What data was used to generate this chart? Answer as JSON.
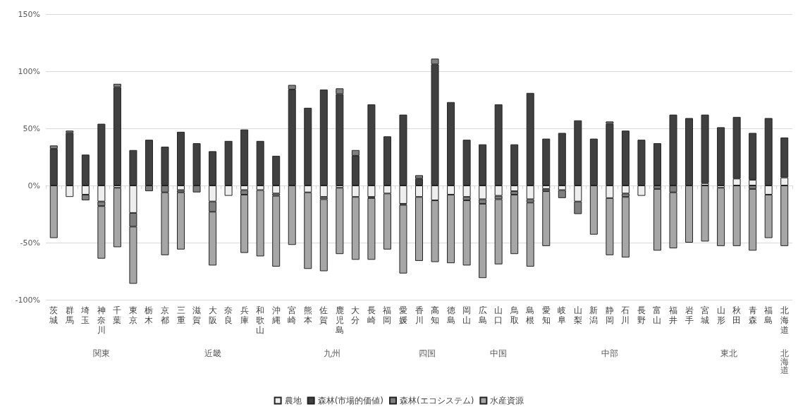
{
  "chart_data": {
    "type": "bar",
    "stacked": true,
    "categories": [
      "茨城",
      "群馬",
      "埼玉",
      "神奈川",
      "千葉",
      "東京",
      "栃木",
      "京都",
      "三重",
      "滋賀",
      "大阪",
      "奈良",
      "兵庫",
      "和歌山",
      "沖縄",
      "宮崎",
      "熊本",
      "佐賀",
      "鹿児島",
      "大分",
      "長崎",
      "福岡",
      "愛媛",
      "香川",
      "高知",
      "徳島",
      "岡山",
      "広島",
      "山口",
      "鳥取",
      "島根",
      "愛知",
      "岐阜",
      "山梨",
      "新潟",
      "静岡",
      "石川",
      "長野",
      "富山",
      "福井",
      "岩手",
      "宮城",
      "山形",
      "秋田",
      "青森",
      "福島",
      "北海道"
    ],
    "series": [
      {
        "name": "農地",
        "color": "#eeeeee",
        "values": [
          null,
          -10,
          -8,
          -14,
          -2,
          -24,
          null,
          null,
          -4,
          null,
          -14,
          -9,
          -4,
          -4,
          -7,
          null,
          -6,
          -10,
          -2,
          -10,
          -10,
          -7,
          -16,
          -10,
          -13,
          -8,
          -10,
          -12,
          -9,
          -5,
          -12,
          -3,
          -4,
          -14,
          null,
          -11,
          -7,
          -9,
          null,
          null,
          null,
          2,
          -2,
          6,
          5,
          -8,
          7
        ]
      },
      {
        "name": "森林(市場的価値)",
        "color": "#404040",
        "values": [
          32,
          46,
          27,
          54,
          86,
          31,
          40,
          34,
          47,
          37,
          30,
          39,
          49,
          39,
          26,
          84,
          68,
          84,
          80,
          26,
          71,
          43,
          62,
          6,
          106,
          73,
          40,
          36,
          71,
          36,
          81,
          41,
          46,
          57,
          41,
          54,
          48,
          40,
          37,
          62,
          59,
          60,
          51,
          54,
          41,
          59,
          35
        ]
      },
      {
        "name": "森林(エコシステム)",
        "color": "#7f7f7f",
        "values": [
          3,
          2,
          -5,
          -4,
          3,
          -12,
          -5,
          -6,
          -2,
          -6,
          -9,
          null,
          -4,
          null,
          -2,
          4,
          null,
          -2,
          5,
          5,
          -1,
          null,
          -1,
          3,
          5,
          null,
          -3,
          -4,
          -3,
          -3,
          -3,
          -2,
          -7,
          -11,
          null,
          2,
          -3,
          null,
          -3,
          -6,
          null,
          null,
          null,
          null,
          -3,
          null,
          null
        ]
      },
      {
        "name": "水産資源",
        "color": "#a6a6a6",
        "values": [
          -46,
          null,
          null,
          -46,
          -52,
          -50,
          null,
          -55,
          -50,
          null,
          -47,
          null,
          -51,
          -58,
          -62,
          -52,
          -67,
          -63,
          -58,
          -55,
          -54,
          -49,
          -60,
          -56,
          -54,
          -60,
          -57,
          -65,
          -57,
          -52,
          -56,
          -48,
          null,
          null,
          -43,
          -50,
          -53,
          null,
          -54,
          -49,
          -50,
          -49,
          -51,
          -53,
          -54,
          -38,
          -53
        ]
      }
    ],
    "ylim": [
      -100,
      150
    ],
    "yticks": [
      {
        "value": -100,
        "label": "-100%"
      },
      {
        "value": -50,
        "label": "-50%"
      },
      {
        "value": 0,
        "label": "0%"
      },
      {
        "value": 50,
        "label": "50%"
      },
      {
        "value": 100,
        "label": "100%"
      },
      {
        "value": 150,
        "label": "150%"
      }
    ],
    "grid": "y",
    "legend": "bottom",
    "annotations": [
      "関東",
      "近畿",
      "九州",
      "四国",
      "中国",
      "中部",
      "東北",
      "北海道"
    ]
  }
}
